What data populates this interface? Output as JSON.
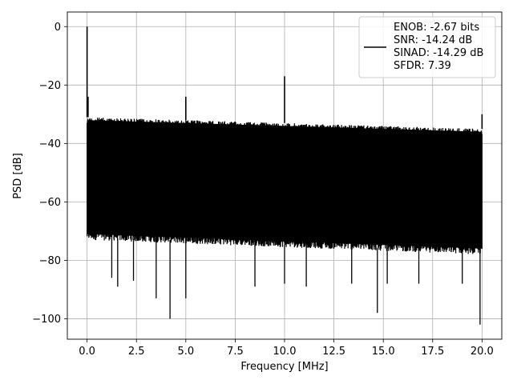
{
  "chart_data": {
    "type": "line",
    "title": "",
    "xlabel": "Frequency [MHz]",
    "ylabel": "PSD [dB]",
    "xlim": [
      -1.0,
      21.0
    ],
    "ylim": [
      -107,
      5
    ],
    "xticks": [
      0.0,
      2.5,
      5.0,
      7.5,
      10.0,
      12.5,
      15.0,
      17.5,
      20.0
    ],
    "xtick_labels": [
      "0.0",
      "2.5",
      "5.0",
      "7.5",
      "10.0",
      "12.5",
      "15.0",
      "17.5",
      "20.0"
    ],
    "yticks": [
      0,
      -20,
      -40,
      -60,
      -80,
      -100
    ],
    "ytick_labels": [
      "0",
      "−20",
      "−40",
      "−60",
      "−80",
      "−100"
    ],
    "grid": true,
    "legend_position": "top-right",
    "series": [
      {
        "name": "ENOB: -2.67 bits\nSNR: -14.24 dB\nSINAD: -14.29 dB\nSFDR: 7.39",
        "color": "#000000",
        "x_range": [
          0.0,
          20.0
        ],
        "noise_envelope": {
          "upper_start": -31,
          "upper_end": -35,
          "lower_start": -72,
          "lower_end": -77
        },
        "peaks": [
          {
            "x": 0.0,
            "y": 0
          },
          {
            "x": 0.05,
            "y": -24
          },
          {
            "x": 5.0,
            "y": -24
          },
          {
            "x": 10.0,
            "y": -17
          },
          {
            "x": 20.0,
            "y": -30
          }
        ],
        "dips": [
          {
            "x": 1.25,
            "y": -86
          },
          {
            "x": 1.55,
            "y": -89
          },
          {
            "x": 2.35,
            "y": -87
          },
          {
            "x": 3.5,
            "y": -93
          },
          {
            "x": 4.2,
            "y": -100
          },
          {
            "x": 5.0,
            "y": -93
          },
          {
            "x": 8.5,
            "y": -89
          },
          {
            "x": 10.0,
            "y": -88
          },
          {
            "x": 11.1,
            "y": -89
          },
          {
            "x": 13.4,
            "y": -88
          },
          {
            "x": 14.7,
            "y": -98
          },
          {
            "x": 15.2,
            "y": -88
          },
          {
            "x": 16.8,
            "y": -88
          },
          {
            "x": 19.0,
            "y": -88
          },
          {
            "x": 19.9,
            "y": -102
          }
        ]
      }
    ]
  },
  "legend": {
    "lines": [
      "ENOB: -2.67 bits",
      "SNR: -14.24 dB",
      "SINAD: -14.29 dB",
      "SFDR: 7.39"
    ]
  },
  "colors": {
    "line": "#000000",
    "grid": "#b0b0b0",
    "legend_border": "#cccccc"
  }
}
